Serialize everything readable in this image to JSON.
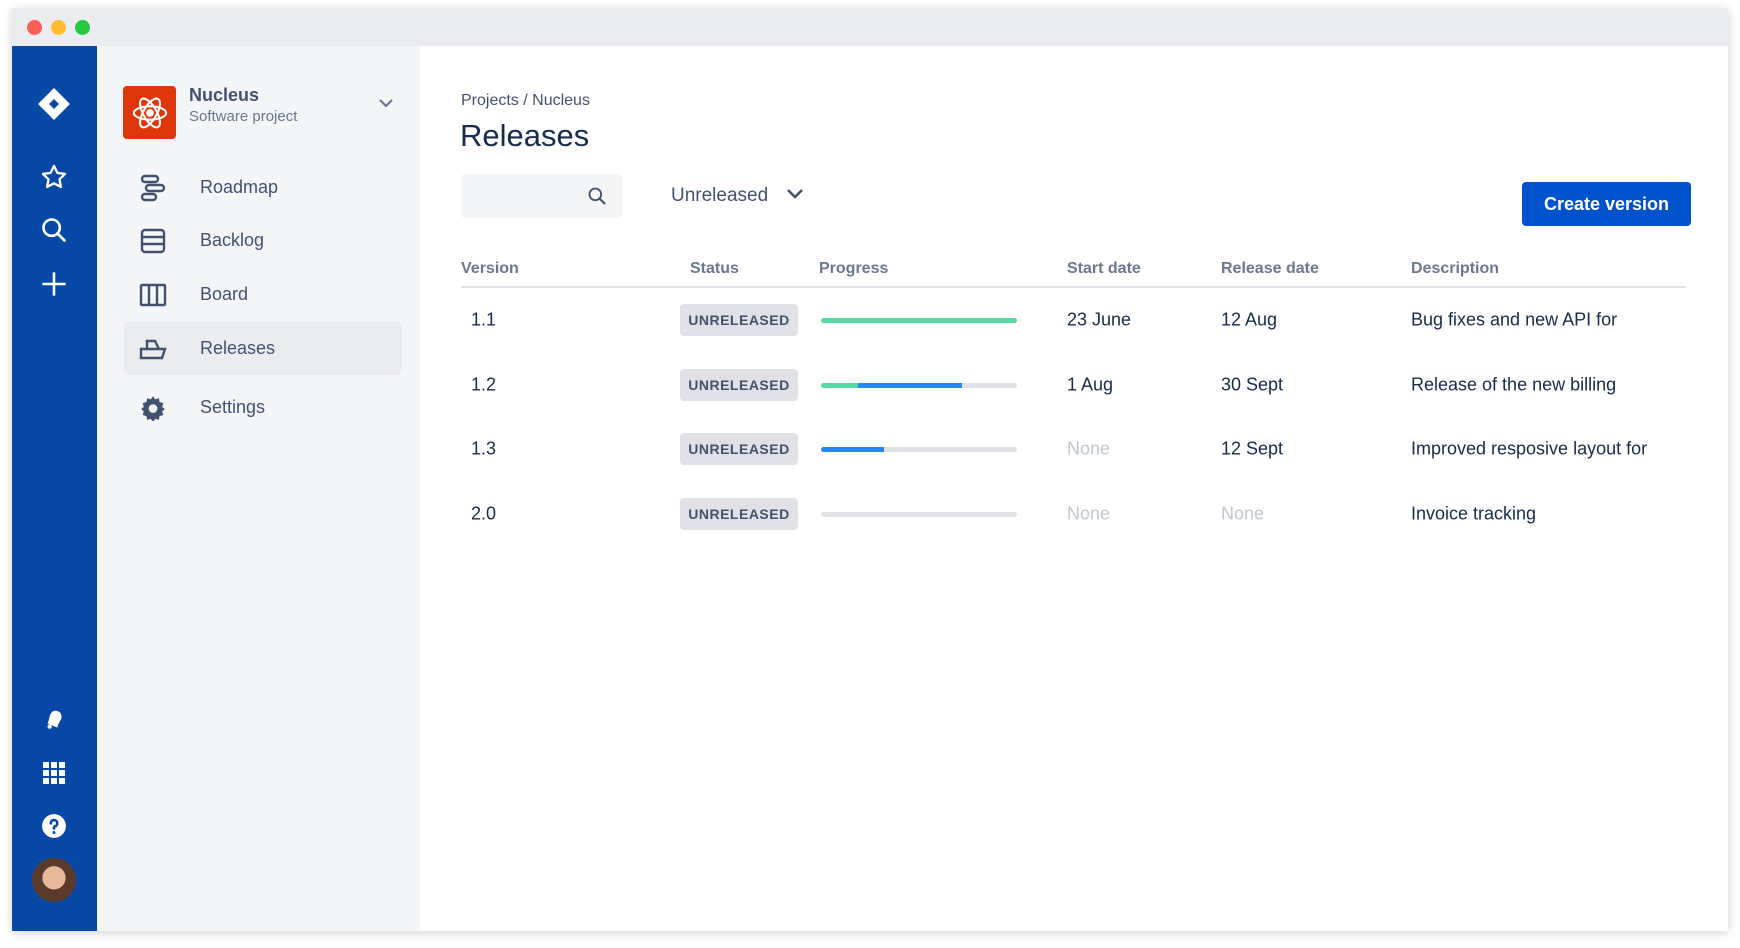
{
  "window": {
    "controls": {
      "close": "#ff5f57",
      "minimize": "#ffbd2e",
      "maximize": "#28c941"
    }
  },
  "global_nav": {
    "color": "#0747a6",
    "top_icons": [
      "jira-logo-icon",
      "star-icon",
      "search-icon",
      "plus-icon"
    ],
    "bottom_icons": [
      "notification-bell-icon",
      "app-switcher-icon",
      "help-icon",
      "avatar"
    ]
  },
  "project": {
    "name": "Nucleus",
    "type": "Software project",
    "icon": "atom-icon",
    "icon_color": "#de350b"
  },
  "sidebar": {
    "items": [
      {
        "label": "Roadmap",
        "icon": "roadmap-icon"
      },
      {
        "label": "Backlog",
        "icon": "backlog-icon"
      },
      {
        "label": "Board",
        "icon": "board-icon"
      },
      {
        "label": "Releases",
        "icon": "ship-icon",
        "selected": true
      },
      {
        "label": "Settings",
        "icon": "gear-icon"
      }
    ]
  },
  "main": {
    "breadcrumb": "Projects / Nucleus",
    "title": "Releases",
    "search": {
      "value": "",
      "placeholder": ""
    },
    "filter": {
      "selected": "Unreleased"
    },
    "create_button": "Create version",
    "accent": "#0052cc",
    "columns": [
      "Version",
      "Status",
      "Progress",
      "Start date",
      "Release date",
      "Description"
    ],
    "rows": [
      {
        "version": "1.1",
        "status": "UNRELEASED",
        "progress": {
          "done": 1.0,
          "in_progress": 0.0
        },
        "start": "23 June",
        "release": "12 Aug",
        "description": "Bug fixes and new API for"
      },
      {
        "version": "1.2",
        "status": "UNRELEASED",
        "progress": {
          "done": 0.19,
          "in_progress": 0.53
        },
        "start": "1 Aug",
        "release": "30 Sept",
        "description": "Release of the new billing"
      },
      {
        "version": "1.3",
        "status": "UNRELEASED",
        "progress": {
          "done": 0.0,
          "in_progress": 0.32
        },
        "start": "None",
        "release": "12 Sept",
        "description": "Improved resposive layout for"
      },
      {
        "version": "2.0",
        "status": "UNRELEASED",
        "progress": {
          "done": 0.0,
          "in_progress": 0.0
        },
        "start": "None",
        "release": "None",
        "description": "Invoice tracking"
      }
    ],
    "progress_colors": {
      "done": "#57d9a3",
      "in_progress": "#2684ff",
      "todo": "#dfe1e6"
    }
  }
}
